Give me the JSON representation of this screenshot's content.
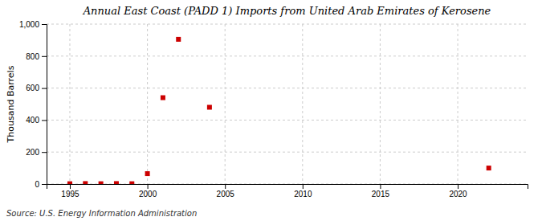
{
  "chart_data": {
    "type": "scatter",
    "title": "Annual East Coast (PADD 1) Imports from United Arab Emirates of Kerosene",
    "ylabel": "Thousand Barrels",
    "source": "Source: U.S. Energy Information Administration",
    "x": [
      1995,
      1996,
      1997,
      1998,
      1999,
      2000,
      2001,
      2002,
      2004,
      2022
    ],
    "values": [
      2,
      3,
      2,
      3,
      2,
      65,
      540,
      905,
      480,
      100
    ],
    "color": "#cc0000",
    "marker": "square",
    "xlim": [
      1993.5,
      2024.5
    ],
    "ylim": [
      0,
      1000
    ],
    "xticks": [
      1995,
      2000,
      2005,
      2010,
      2015,
      2020
    ],
    "yticks": [
      0,
      200,
      400,
      600,
      800,
      {
        "value": 1000,
        "label": "1,000"
      }
    ],
    "grid": true
  }
}
